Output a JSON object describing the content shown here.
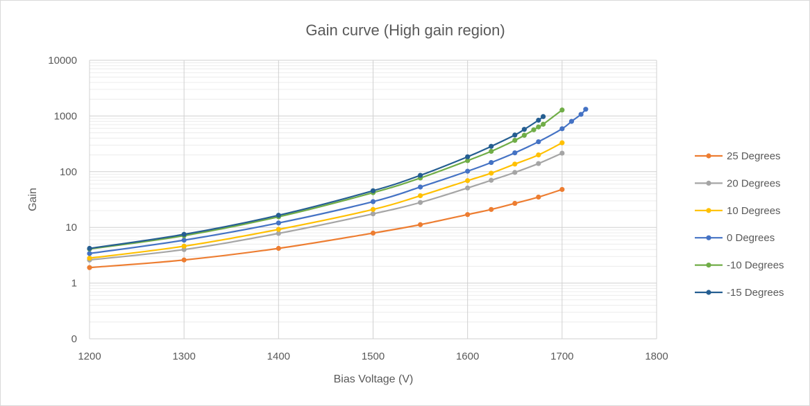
{
  "chart_data": {
    "type": "line",
    "title": "Gain curve (High gain region)",
    "xlabel": "Bias Voltage (V)",
    "ylabel": "Gain",
    "xlim": [
      1200,
      1800
    ],
    "x_ticks": [
      1200,
      1300,
      1400,
      1500,
      1600,
      1700,
      1800
    ],
    "ylim": [
      0.1,
      10000
    ],
    "y_scale": "log",
    "y_ticks": [
      {
        "value": 0.1,
        "label": "0"
      },
      {
        "value": 1,
        "label": "1"
      },
      {
        "value": 10,
        "label": "10"
      },
      {
        "value": 100,
        "label": "100"
      },
      {
        "value": 1000,
        "label": "1000"
      },
      {
        "value": 10000,
        "label": "10000"
      }
    ],
    "grid": true,
    "legend_position": "right",
    "series": [
      {
        "name": "25 Degrees",
        "color": "#ED7D31",
        "points": [
          [
            1200,
            1.9
          ],
          [
            1300,
            2.6
          ],
          [
            1400,
            4.2
          ],
          [
            1500,
            7.9
          ],
          [
            1550,
            11.2
          ],
          [
            1600,
            17
          ],
          [
            1625,
            21
          ],
          [
            1650,
            27
          ],
          [
            1675,
            35
          ],
          [
            1700,
            48
          ]
        ]
      },
      {
        "name": "20 Degrees",
        "color": "#A5A5A5",
        "points": [
          [
            1200,
            2.6
          ],
          [
            1300,
            4.0
          ],
          [
            1400,
            7.8
          ],
          [
            1500,
            17.5
          ],
          [
            1550,
            28
          ],
          [
            1600,
            51
          ],
          [
            1625,
            70
          ],
          [
            1650,
            97
          ],
          [
            1675,
            140
          ],
          [
            1700,
            215
          ]
        ]
      },
      {
        "name": "10 Degrees",
        "color": "#FFC000",
        "points": [
          [
            1200,
            2.8
          ],
          [
            1300,
            4.6
          ],
          [
            1400,
            9.2
          ],
          [
            1500,
            21
          ],
          [
            1550,
            37
          ],
          [
            1600,
            69
          ],
          [
            1625,
            94
          ],
          [
            1650,
            137
          ],
          [
            1675,
            200
          ],
          [
            1700,
            330
          ]
        ]
      },
      {
        "name": "0 Degrees",
        "color": "#4472C4",
        "points": [
          [
            1200,
            3.4
          ],
          [
            1300,
            5.9
          ],
          [
            1400,
            12
          ],
          [
            1500,
            29
          ],
          [
            1550,
            53
          ],
          [
            1600,
            102
          ],
          [
            1625,
            146
          ],
          [
            1650,
            218
          ],
          [
            1675,
            345
          ],
          [
            1700,
            590
          ],
          [
            1710,
            800
          ],
          [
            1720,
            1070
          ],
          [
            1725,
            1320
          ]
        ]
      },
      {
        "name": "-10 Degrees",
        "color": "#70AD47",
        "points": [
          [
            1200,
            4.1
          ],
          [
            1300,
            7.1
          ],
          [
            1400,
            15.5
          ],
          [
            1500,
            42
          ],
          [
            1550,
            77
          ],
          [
            1600,
            158
          ],
          [
            1625,
            232
          ],
          [
            1650,
            365
          ],
          [
            1660,
            450
          ],
          [
            1670,
            565
          ],
          [
            1675,
            635
          ],
          [
            1680,
            710
          ],
          [
            1700,
            1280
          ]
        ]
      },
      {
        "name": "-15 Degrees",
        "color": "#255E91",
        "points": [
          [
            1200,
            4.2
          ],
          [
            1300,
            7.5
          ],
          [
            1400,
            16.5
          ],
          [
            1500,
            45.5
          ],
          [
            1550,
            86
          ],
          [
            1600,
            185
          ],
          [
            1625,
            285
          ],
          [
            1650,
            455
          ],
          [
            1660,
            575
          ],
          [
            1675,
            840
          ],
          [
            1680,
            975
          ]
        ]
      }
    ]
  }
}
